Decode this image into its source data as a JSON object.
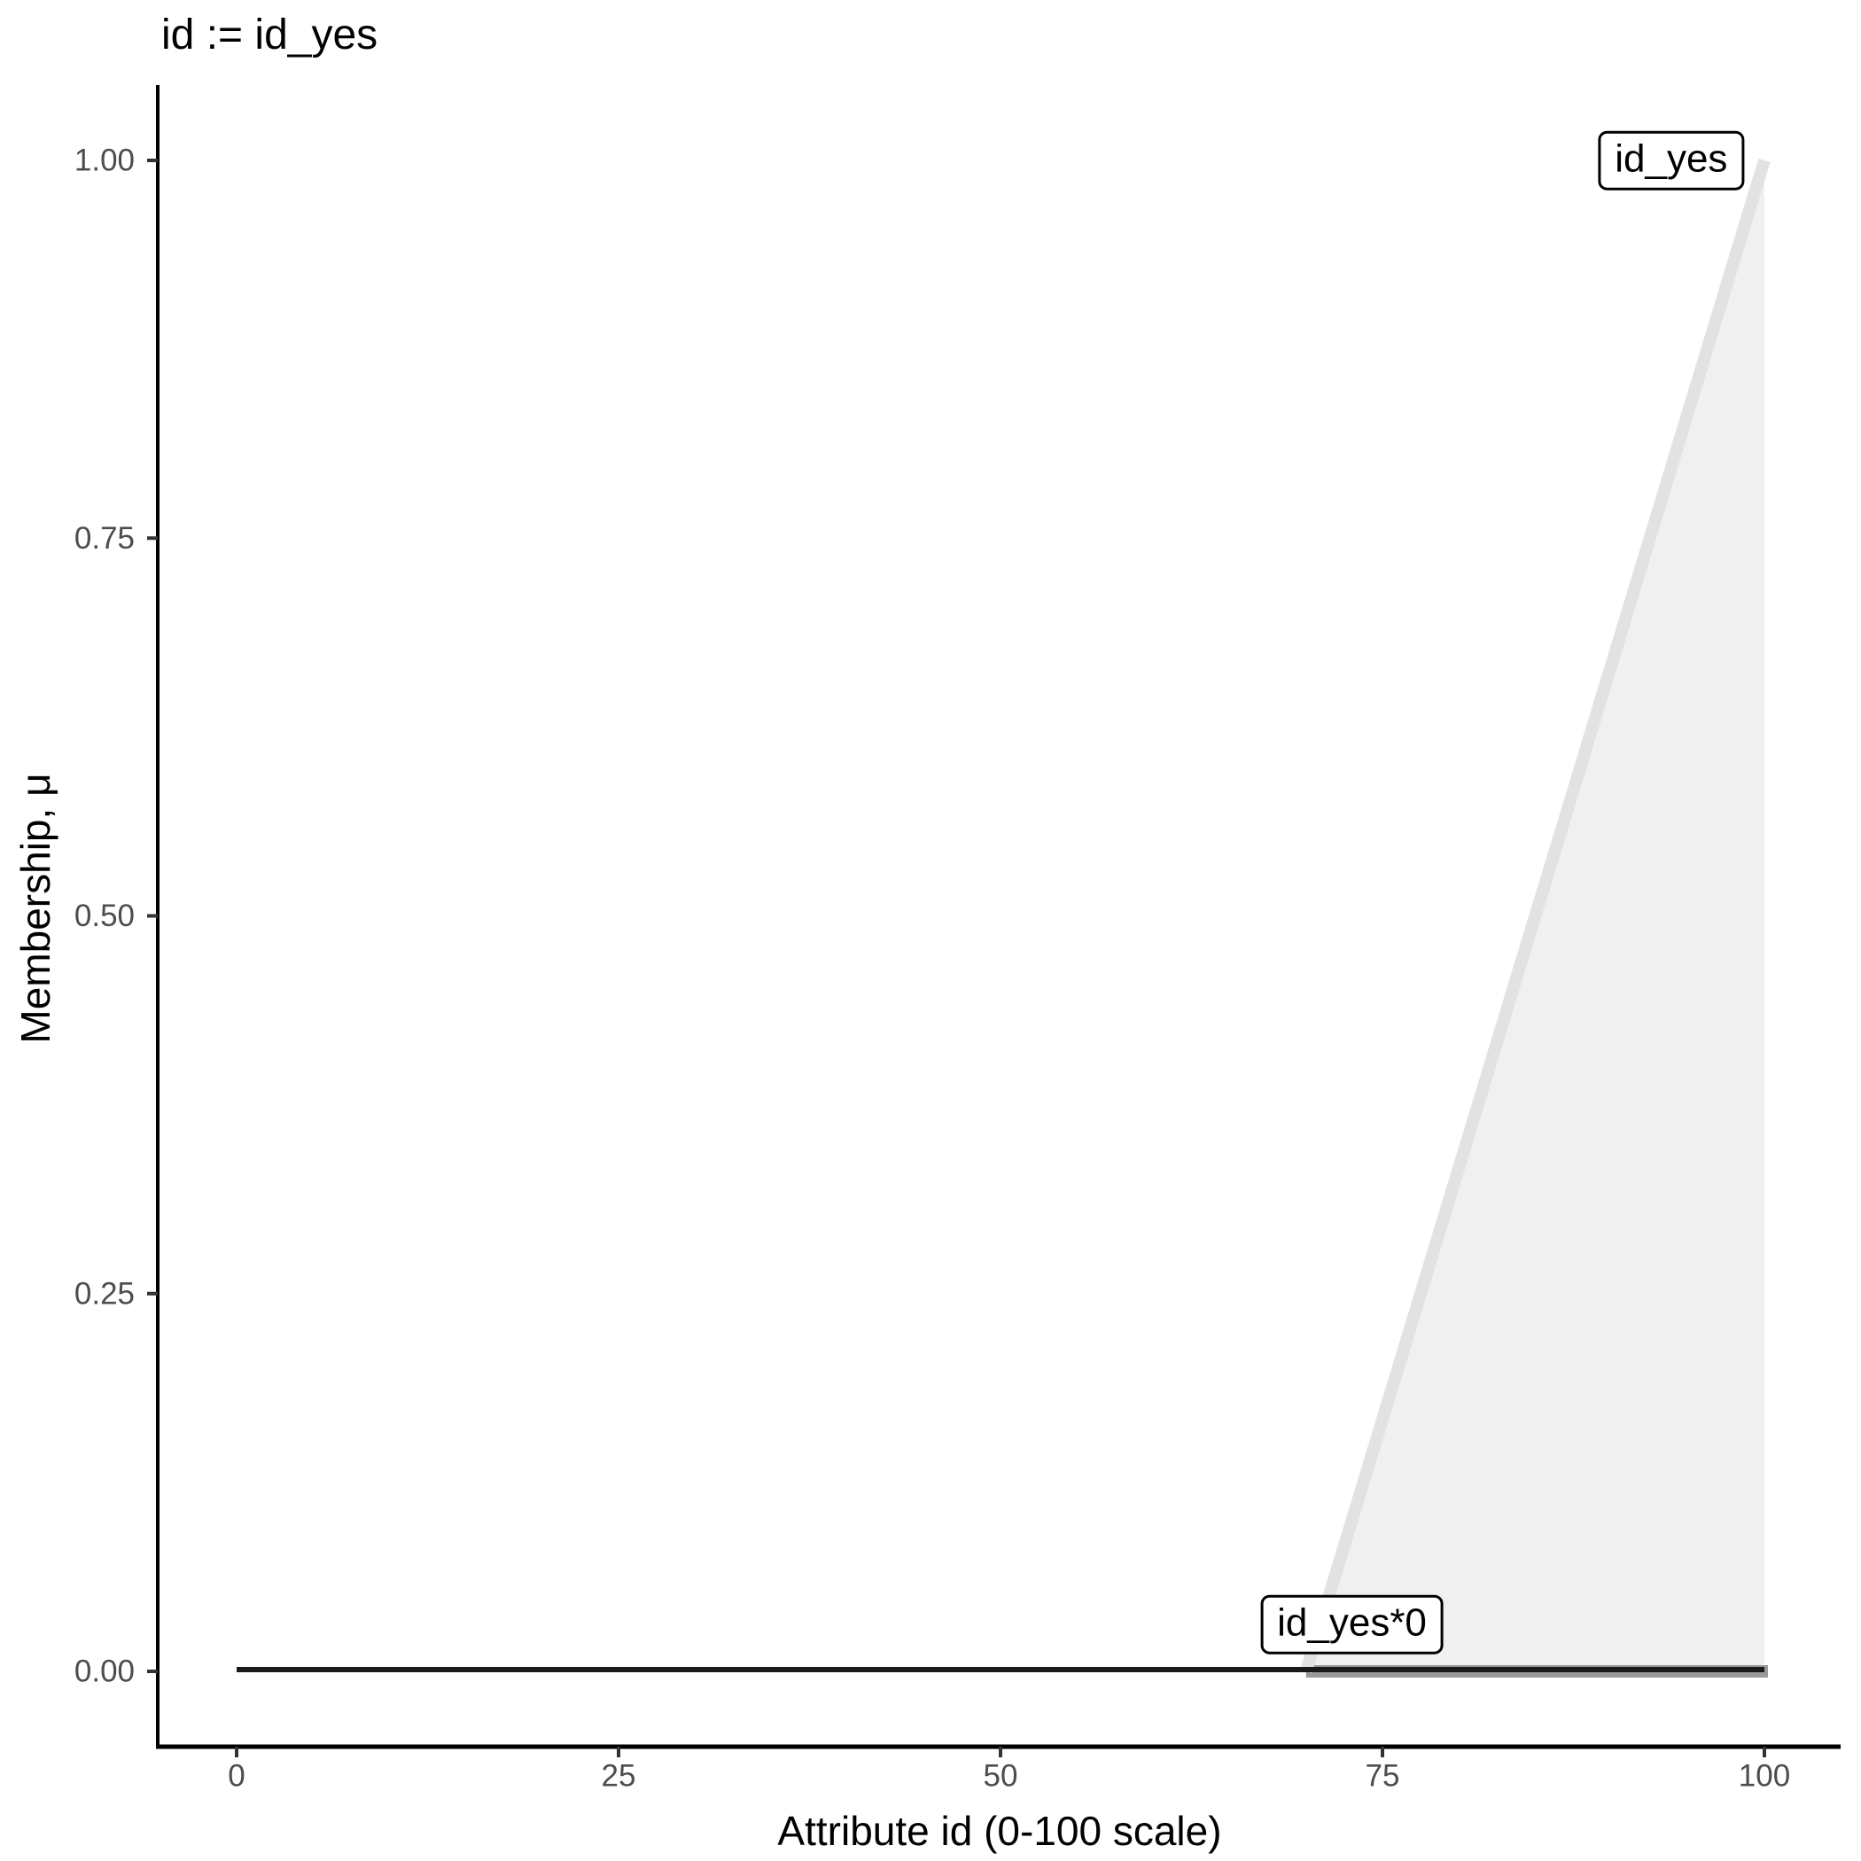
{
  "chart_data": {
    "type": "area",
    "title": "id := id_yes",
    "xlabel": "Attribute id (0-100 scale)",
    "ylabel": "Membership, μ",
    "xlim": [
      0,
      100
    ],
    "ylim": [
      0,
      1
    ],
    "grid": "off",
    "legend": "none",
    "x_ticks": {
      "values": [
        0,
        25,
        50,
        75,
        100
      ],
      "labels": [
        "0",
        "25",
        "50",
        "75",
        "100"
      ]
    },
    "y_ticks": {
      "values": [
        0,
        0.25,
        0.5,
        0.75,
        1
      ],
      "labels": [
        "0.00",
        "0.25",
        "0.50",
        "0.75",
        "1.00"
      ]
    },
    "series": [
      {
        "name": "id_yes",
        "role": "membership-function",
        "points": [
          [
            70,
            0
          ],
          [
            100,
            1
          ]
        ],
        "area": [
          [
            70,
            0
          ],
          [
            100,
            1
          ],
          [
            100,
            0
          ]
        ],
        "line_color": "#e2e2e2",
        "fill_color": "#f0f0f0",
        "line_width": 14,
        "label": "id_yes",
        "label_x": 93.9,
        "label_y": 1.0
      },
      {
        "name": "id_yes*0",
        "role": "scaled-membership-function",
        "points": [
          [
            0,
            0
          ],
          [
            100,
            0
          ]
        ],
        "line_color": "#1a1a1a",
        "line_width": 6,
        "halo": {
          "from_x": 70,
          "to_x": 100,
          "color": "#999999",
          "width": 14
        },
        "label": "id_yes*0",
        "label_x": 73.0,
        "label_y": 0.031
      }
    ],
    "colors": {
      "axis": "#000000",
      "tick": "#333333",
      "tick_label": "#4d4d4d",
      "background": "#ffffff"
    }
  }
}
